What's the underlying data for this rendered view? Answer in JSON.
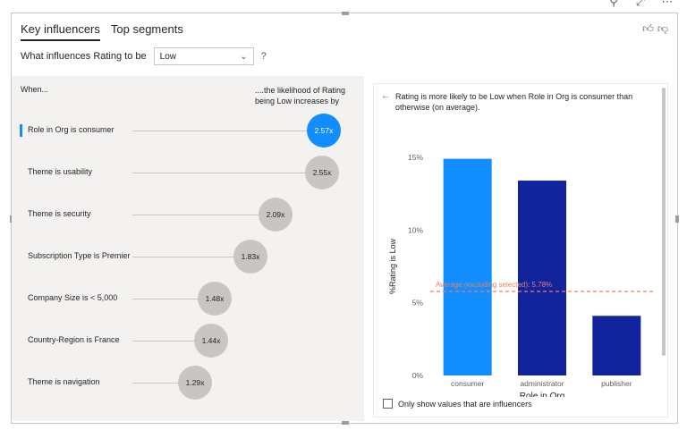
{
  "toolbar": {
    "filter_icon": "filter-icon",
    "focus_icon": "focus-mode-icon",
    "more_icon": "more-options-icon"
  },
  "tabs": [
    {
      "label": "Key influencers",
      "active": true
    },
    {
      "label": "Top segments",
      "active": false
    }
  ],
  "feedback": {
    "thumbs_up": "thumbs-up-icon",
    "thumbs_down": "thumbs-down-icon"
  },
  "question": {
    "prefix": "What influences Rating to be",
    "value": "Low",
    "help": "?"
  },
  "influencers": {
    "when_header": "When...",
    "likely_header": "....the likelihood of Rating being Low increases by",
    "items": [
      {
        "label": "Role in Org is consumer",
        "value": "2.57x",
        "selected": true
      },
      {
        "label": "Theme is usability",
        "value": "2.55x",
        "selected": false
      },
      {
        "label": "Theme is security",
        "value": "2.09x",
        "selected": false
      },
      {
        "label": "Subscription Type is Premier",
        "value": "1.83x",
        "selected": false
      },
      {
        "label": "Company Size is < 5,000",
        "value": "1.48x",
        "selected": false
      },
      {
        "label": "Country-Region is France",
        "value": "1.44x",
        "selected": false
      },
      {
        "label": "Theme is navigation",
        "value": "1.29x",
        "selected": false
      }
    ]
  },
  "detail": {
    "back_icon": "back-arrow-icon",
    "explanation": "Rating is more likely to be Low when Role in Org is consumer than otherwise (on average).",
    "only_influencers_label": "Only show values that are influencers"
  },
  "colors": {
    "accent": "#118dff",
    "bar_dark": "#12239e",
    "average_line": "#e8825b",
    "bubble_grey": "#c8c6c4"
  },
  "chart_data": {
    "type": "bar",
    "categories": [
      "consumer",
      "administrator",
      "publisher"
    ],
    "values": [
      14.9,
      13.4,
      4.1
    ],
    "bar_colors": [
      "#118dff",
      "#12239e",
      "#12239e"
    ],
    "ylabel": "%Rating is Low",
    "xlabel": "Role in Org",
    "yticks": [
      "0%",
      "5%",
      "10%",
      "15%"
    ],
    "ylim": [
      0,
      15
    ],
    "reference_line": {
      "value": 5.78,
      "label": "Average (excluding selected): 5.78%"
    }
  }
}
